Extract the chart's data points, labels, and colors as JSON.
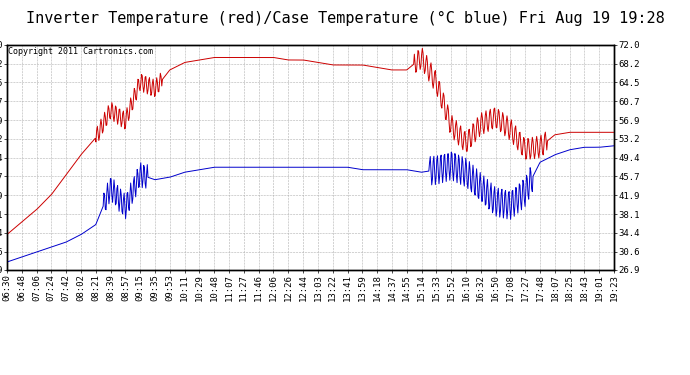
{
  "title": "Inverter Temperature (red)/Case Temperature (°C blue) Fri Aug 19 19:28",
  "copyright": "Copyright 2011 Cartronics.com",
  "red_color": "#cc0000",
  "blue_color": "#0000cc",
  "bg_color": "#ffffff",
  "grid_color": "#b0b0b0",
  "ylim": [
    26.9,
    72.0
  ],
  "yticks": [
    26.9,
    30.6,
    34.4,
    38.1,
    41.9,
    45.7,
    49.4,
    53.2,
    56.9,
    60.7,
    64.5,
    68.2,
    72.0
  ],
  "xtick_labels": [
    "06:30",
    "06:48",
    "07:06",
    "07:24",
    "07:42",
    "08:02",
    "08:21",
    "08:39",
    "08:57",
    "09:15",
    "09:35",
    "09:53",
    "10:11",
    "10:29",
    "10:48",
    "11:07",
    "11:27",
    "11:46",
    "12:06",
    "12:26",
    "12:44",
    "13:03",
    "13:22",
    "13:41",
    "13:59",
    "14:18",
    "14:37",
    "14:55",
    "15:14",
    "15:33",
    "15:52",
    "16:10",
    "16:32",
    "16:50",
    "17:08",
    "17:27",
    "17:48",
    "18:07",
    "18:25",
    "18:43",
    "19:01",
    "19:23"
  ],
  "title_fontsize": 11,
  "tick_fontsize": 6.5,
  "copyright_fontsize": 6
}
